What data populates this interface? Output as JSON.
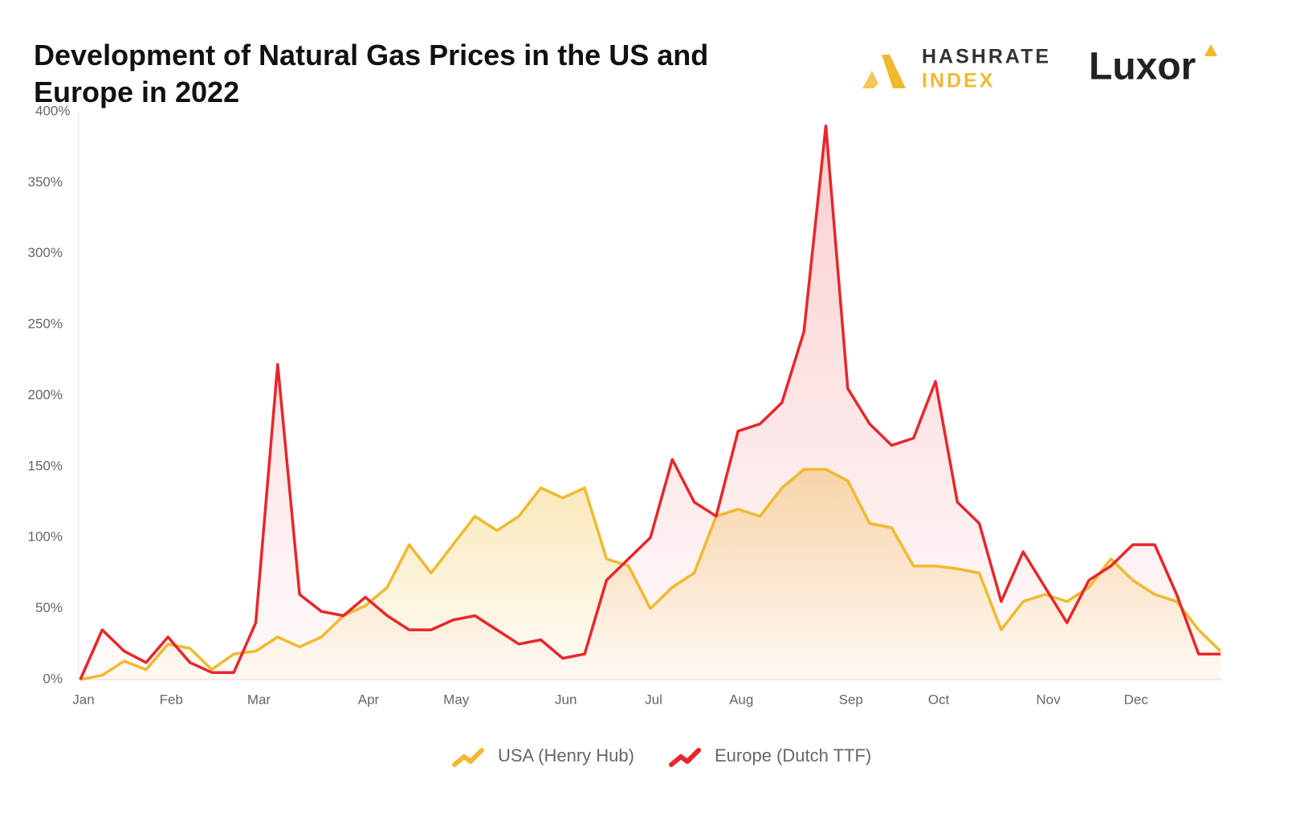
{
  "chart_data": {
    "type": "line",
    "title": "Development of Natural Gas Prices in the US and Europe in 2022",
    "categories": [
      "Jan",
      null,
      null,
      null,
      "Feb",
      null,
      null,
      null,
      "Mar",
      null,
      null,
      null,
      null,
      "Apr",
      null,
      null,
      null,
      "May",
      null,
      null,
      null,
      null,
      "Jun",
      null,
      null,
      null,
      "Jul",
      null,
      null,
      null,
      "Aug",
      null,
      null,
      null,
      null,
      "Sep",
      null,
      null,
      null,
      "Oct",
      null,
      null,
      null,
      null,
      "Nov",
      null,
      null,
      null,
      "Dec",
      null,
      null,
      null,
      null
    ],
    "series": [
      {
        "name": "USA (Henry Hub)",
        "color": "#f0b92e",
        "values": [
          0,
          3,
          13,
          7,
          25,
          22,
          7,
          18,
          20,
          30,
          23,
          30,
          45,
          52,
          65,
          95,
          75,
          95,
          115,
          105,
          115,
          135,
          128,
          135,
          85,
          80,
          50,
          65,
          75,
          115,
          120,
          115,
          135,
          148,
          148,
          140,
          110,
          107,
          80,
          80,
          78,
          75,
          35,
          55,
          60,
          55,
          65,
          85,
          70,
          60,
          55,
          35,
          20
        ]
      },
      {
        "name": "Europe (Dutch TTF)",
        "color": "#e8262b",
        "values": [
          0,
          35,
          20,
          12,
          30,
          12,
          5,
          5,
          40,
          222,
          60,
          48,
          45,
          58,
          45,
          35,
          35,
          42,
          45,
          35,
          25,
          28,
          15,
          18,
          70,
          85,
          100,
          155,
          125,
          115,
          175,
          180,
          195,
          245,
          390,
          205,
          180,
          165,
          170,
          210,
          125,
          110,
          55,
          90,
          65,
          40,
          70,
          80,
          95,
          95,
          60,
          18,
          18
        ]
      }
    ],
    "ylim": [
      0,
      400
    ],
    "yticks": [
      {
        "value": 0,
        "label": "0%"
      },
      {
        "value": 50,
        "label": "50%"
      },
      {
        "value": 100,
        "label": "100%"
      },
      {
        "value": 150,
        "label": "150%"
      },
      {
        "value": 200,
        "label": "200%"
      },
      {
        "value": 250,
        "label": "250%"
      },
      {
        "value": 300,
        "label": "300%"
      },
      {
        "value": 350,
        "label": "350%"
      },
      {
        "value": 400,
        "label": "400%"
      }
    ],
    "legend": "bottom"
  },
  "branding": {
    "hashrate": "HASHRATE",
    "index": "INDEX",
    "luxor": "Luxor"
  }
}
